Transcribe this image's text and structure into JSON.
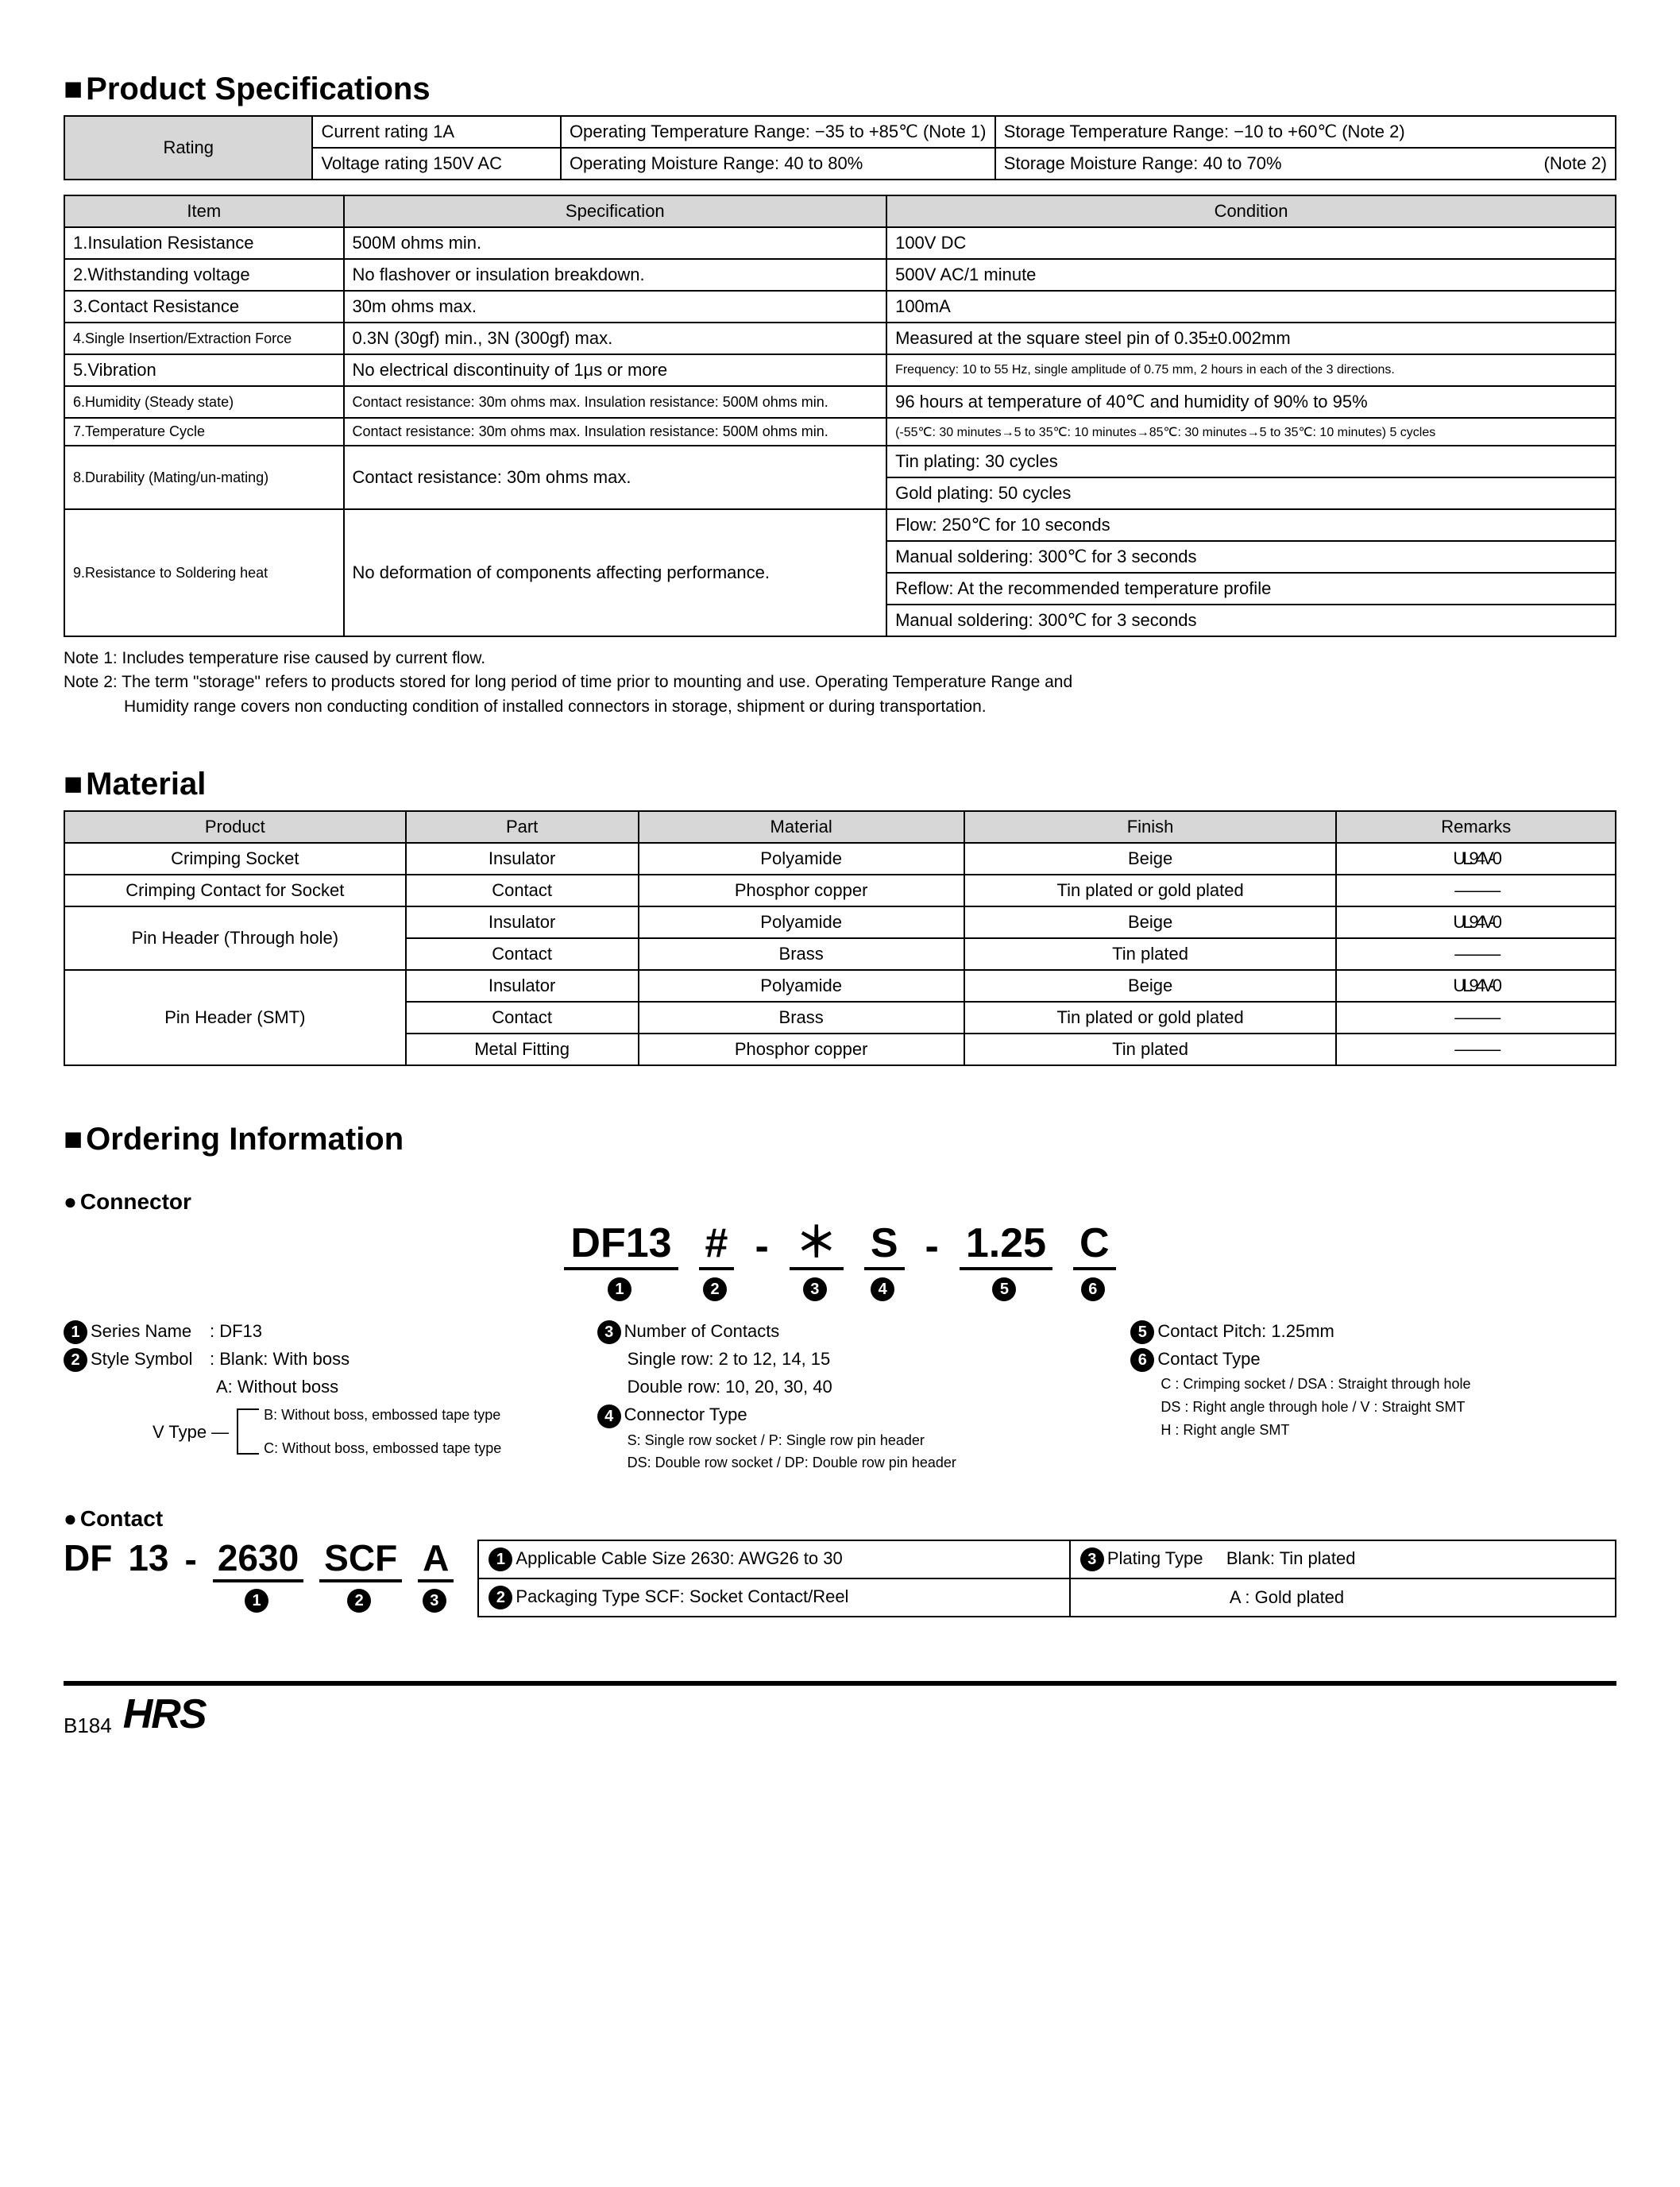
{
  "colors": {
    "header_bg": "#d7d7d7",
    "border": "#000000",
    "text": "#000000",
    "bg": "#ffffff"
  },
  "sections": {
    "spec_title": "Product Specifications",
    "material_title": "Material",
    "ordering_title": "Ordering Information",
    "connector_sub": "Connector",
    "contact_sub": "Contact"
  },
  "rating_table": {
    "rating_label": "Rating",
    "current": "Current rating  1A",
    "voltage": "Voltage rating  150V AC",
    "op_temp": "Operating Temperature Range: −35 to +85℃ (Note 1)",
    "op_moist": "Operating Moisture Range: 40 to 80%",
    "st_temp": "Storage Temperature Range: −10 to +60℃ (Note 2)",
    "st_moist_a": "Storage Moisture Range: 40 to 70%",
    "st_moist_b": "(Note 2)"
  },
  "spec_table": {
    "headers": {
      "item": "Item",
      "spec": "Specification",
      "cond": "Condition"
    },
    "rows": [
      {
        "item": "1.Insulation Resistance",
        "spec": "500M ohms min.",
        "cond": "100V DC"
      },
      {
        "item": "2.Withstanding voltage",
        "spec": "No flashover or insulation breakdown.",
        "cond": "500V AC/1 minute"
      },
      {
        "item": "3.Contact Resistance",
        "spec": "30m ohms max.",
        "cond": "100mA"
      },
      {
        "item": "4.Single Insertion/Extraction Force",
        "spec": "0.3N (30gf) min., 3N (300gf) max.",
        "cond": "Measured at the square steel pin of 0.35±0.002mm"
      },
      {
        "item": "5.Vibration",
        "spec": "No electrical discontinuity of 1μs or more",
        "cond": "Frequency: 10 to 55 Hz, single amplitude of 0.75 mm, 2 hours in each of the 3 directions."
      },
      {
        "item": "6.Humidity (Steady state)",
        "spec": "Contact resistance: 30m ohms max. Insulation resistance: 500M ohms min.",
        "cond": "96 hours at temperature of 40℃ and humidity of 90% to 95%"
      },
      {
        "item": "7.Temperature Cycle",
        "spec": "Contact resistance: 30m ohms max. Insulation resistance: 500M ohms min.",
        "cond": "(-55℃: 30 minutes→5 to 35℃: 10 minutes→85℃: 30 minutes→5 to 35℃: 10 minutes) 5 cycles"
      }
    ],
    "row8": {
      "item": "8.Durability (Mating/un-mating)",
      "spec": "Contact resistance: 30m ohms max.",
      "cond_a": "Tin plating: 30 cycles",
      "cond_b": "Gold plating: 50 cycles"
    },
    "row9": {
      "item": "9.Resistance to Soldering heat",
      "spec": "No deformation of components affecting performance.",
      "cond_a": "Flow: 250℃ for 10 seconds",
      "cond_b": "Manual soldering: 300℃ for 3 seconds",
      "cond_c": "Reflow: At the recommended temperature profile",
      "cond_d": "Manual soldering: 300℃ for 3 seconds"
    }
  },
  "notes": {
    "n1": "Note 1: Includes temperature rise caused by current flow.",
    "n2a": "Note 2: The term \"storage\" refers to products stored for long period of time prior to mounting and use. Operating Temperature Range and",
    "n2b": "Humidity range covers non conducting condition of installed connectors in storage, shipment or during transportation."
  },
  "material_table": {
    "headers": {
      "product": "Product",
      "part": "Part",
      "material": "Material",
      "finish": "Finish",
      "remarks": "Remarks"
    },
    "rows": [
      {
        "product": "Crimping Socket",
        "part": "Insulator",
        "material": "Polyamide",
        "finish": "Beige",
        "remarks": "UL94V-0",
        "prod_rowspan": 1
      },
      {
        "product": "Crimping Contact for Socket",
        "part": "Contact",
        "material": "Phosphor copper",
        "finish": "Tin plated or gold plated",
        "remarks": "———",
        "prod_rowspan": 1
      },
      {
        "product": "Pin Header (Through hole)",
        "part": "Insulator",
        "material": "Polyamide",
        "finish": "Beige",
        "remarks": "UL94V-0",
        "prod_rowspan": 2
      },
      {
        "product": "",
        "part": "Contact",
        "material": "Brass",
        "finish": "Tin plated",
        "remarks": "———"
      },
      {
        "product": "Pin Header (SMT)",
        "part": "Insulator",
        "material": "Polyamide",
        "finish": "Beige",
        "remarks": "UL94V-0",
        "prod_rowspan": 3
      },
      {
        "product": "",
        "part": "Contact",
        "material": "Brass",
        "finish": "Tin plated or gold plated",
        "remarks": "———"
      },
      {
        "product": "",
        "part": "Metal Fitting",
        "material": "Phosphor copper",
        "finish": "Tin plated",
        "remarks": "———"
      }
    ]
  },
  "connector_pn": {
    "segs": [
      {
        "txt": "DF13",
        "num": "1"
      },
      {
        "txt": "#",
        "num": "2"
      },
      {
        "txt": "＊",
        "num": "3"
      },
      {
        "txt": "S",
        "num": "4"
      },
      {
        "txt": "1.25",
        "num": "5"
      },
      {
        "txt": "C",
        "num": "6"
      }
    ]
  },
  "connector_legend": {
    "c1": {
      "l1a": "Series Name",
      "l1b": ": DF13",
      "l2a": "Style Symbol",
      "l2b": ": Blank: With boss",
      "l3": "A: Without boss",
      "vtype_label": "V Type",
      "vb": "B: Without boss, embossed tape type",
      "vc": "C: Without boss, embossed tape type"
    },
    "c2": {
      "l1": "Number of Contacts",
      "l2": "Single row: 2 to 12, 14, 15",
      "l3": "Double row: 10, 20, 30, 40",
      "l4": "Connector Type",
      "l5": "S: Single row socket / P: Single row pin header",
      "l6": "DS: Double row socket / DP: Double row pin header"
    },
    "c3": {
      "l1": "Contact Pitch: 1.25mm",
      "l2": "Contact Type",
      "l3": "C : Crimping socket / DSA : Straight through hole",
      "l4": "DS : Right angle through hole / V : Straight SMT",
      "l5": "H : Right angle SMT"
    }
  },
  "contact_pn": {
    "p1": "DF",
    "p2": "13",
    "dash": "-",
    "p3": "2630",
    "p4": "SCF",
    "p5": "A"
  },
  "contact_table": {
    "r1a": "Applicable Cable Size  2630: AWG26 to 30",
    "r1b_label": "Plating Type",
    "r1b_val": "Blank: Tin plated",
    "r2a": "Packaging Type  SCF: Socket Contact/Reel",
    "r2b": "A    : Gold plated"
  },
  "footer": {
    "page": "B184",
    "logo": "HRS"
  }
}
